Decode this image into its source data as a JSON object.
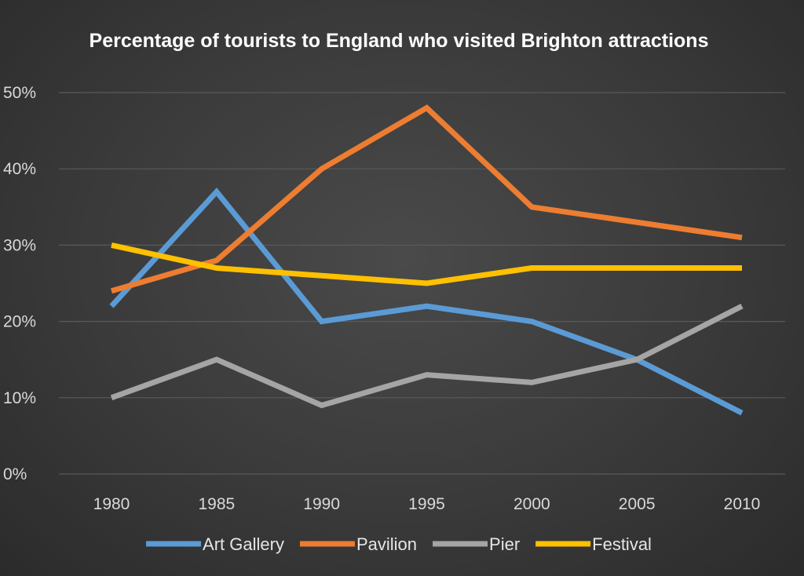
{
  "chart_data": {
    "type": "line",
    "title": "Percentage of tourists to England who visited Brighton attractions",
    "xlabel": "",
    "ylabel": "",
    "categories": [
      "1980",
      "1985",
      "1990",
      "1995",
      "2000",
      "2005",
      "2010"
    ],
    "y_tick_labels": [
      "0%",
      "10%",
      "20%",
      "30%",
      "40%",
      "50%"
    ],
    "ylim": [
      0,
      50
    ],
    "grid": true,
    "legend_position": "bottom",
    "series": [
      {
        "name": "Art Gallery",
        "color": "#5b9bd5",
        "values": [
          22,
          37,
          20,
          22,
          20,
          15,
          8
        ]
      },
      {
        "name": "Pavilion",
        "color": "#ed7d31",
        "values": [
          24,
          28,
          40,
          48,
          35,
          33,
          31
        ]
      },
      {
        "name": "Pier",
        "color": "#a5a5a5",
        "values": [
          10,
          15,
          9,
          13,
          12,
          15,
          22
        ]
      },
      {
        "name": "Festival",
        "color": "#ffc000",
        "values": [
          30,
          27,
          26,
          25,
          27,
          27,
          27
        ]
      }
    ]
  }
}
